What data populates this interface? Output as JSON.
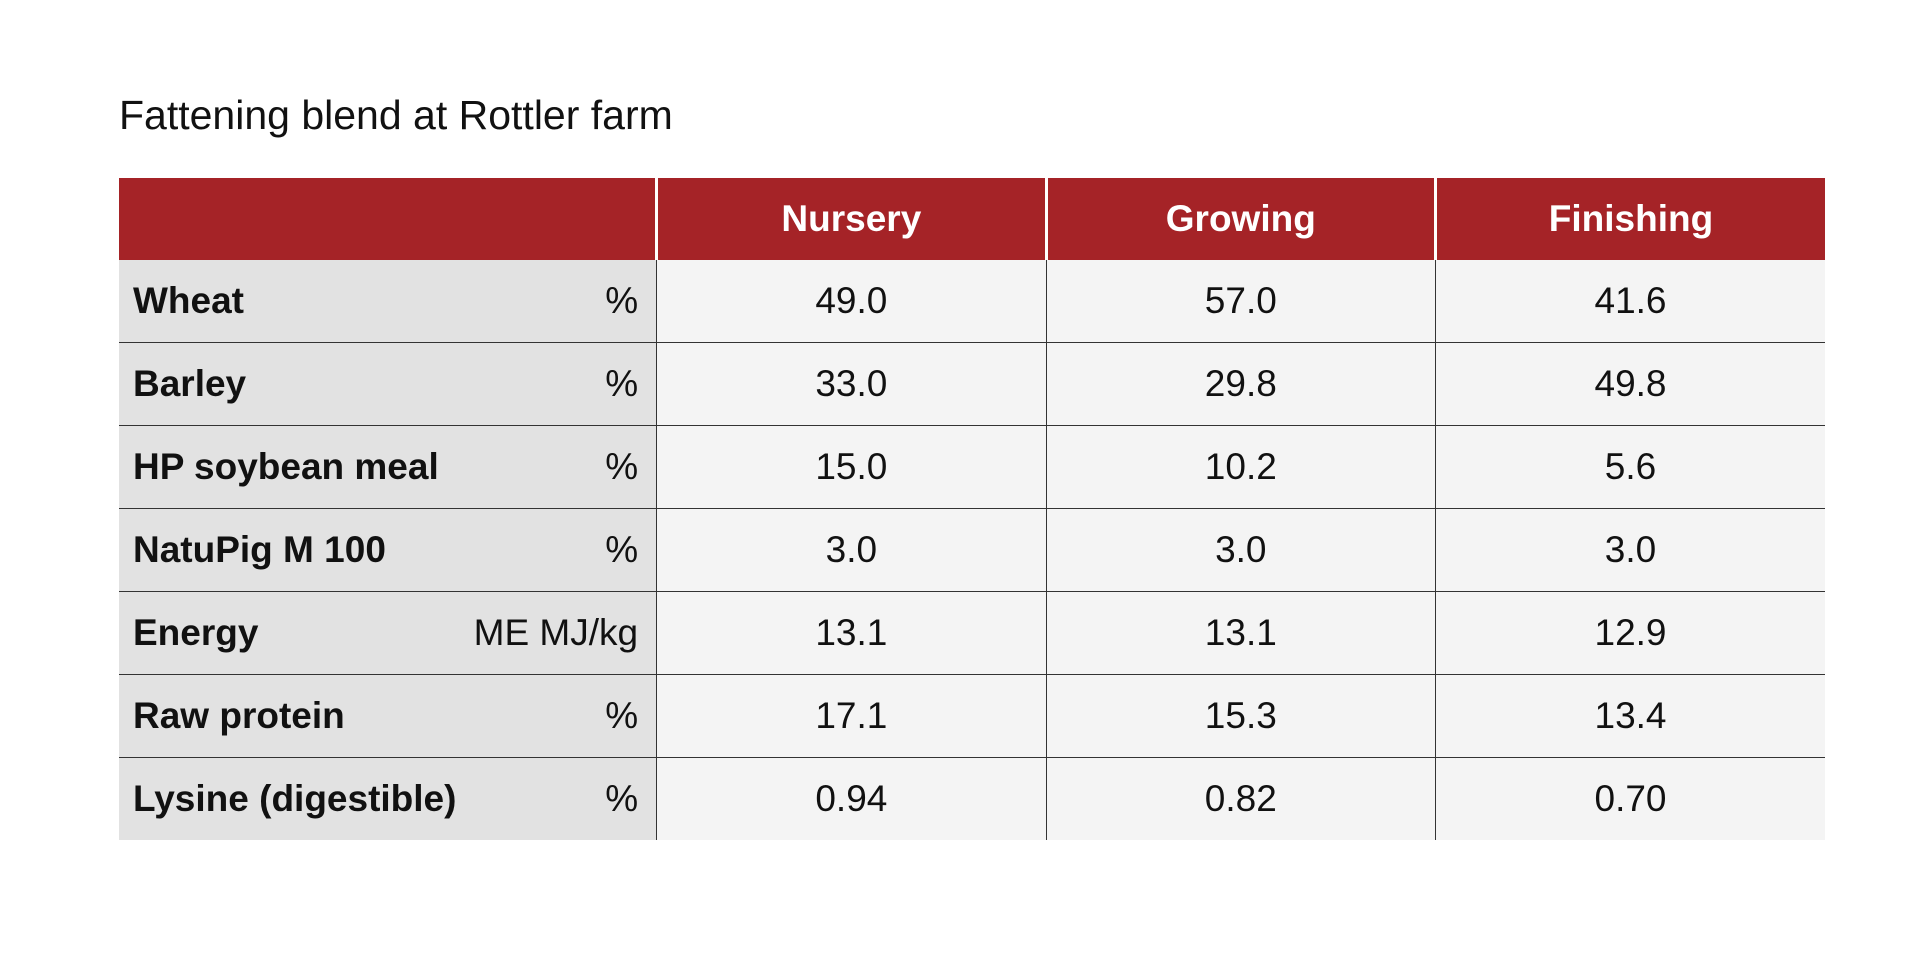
{
  "title": "Fattening blend at Rottler farm",
  "colors": {
    "header_bg": "#a52327",
    "header_text": "#ffffff",
    "label_bg": "#e2e2e2",
    "value_bg": "#f4f4f4"
  },
  "columns": [
    "Nursery",
    "Growing",
    "Finishing"
  ],
  "rows": [
    {
      "name": "Wheat",
      "unit": "%",
      "values": [
        "49.0",
        "57.0",
        "41.6"
      ]
    },
    {
      "name": "Barley",
      "unit": "%",
      "values": [
        "33.0",
        "29.8",
        "49.8"
      ]
    },
    {
      "name": "HP soybean meal",
      "unit": "%",
      "values": [
        "15.0",
        "10.2",
        "5.6"
      ]
    },
    {
      "name": "NatuPig M 100",
      "unit": "%",
      "values": [
        "3.0",
        "3.0",
        "3.0"
      ]
    },
    {
      "name": "Energy",
      "unit": "ME MJ/kg",
      "values": [
        "13.1",
        "13.1",
        "12.9"
      ]
    },
    {
      "name": "Raw protein",
      "unit": "%",
      "values": [
        "17.1",
        "15.3",
        "13.4"
      ]
    },
    {
      "name": "Lysine (digestible)",
      "unit": "%",
      "values": [
        "0.94",
        "0.82",
        "0.70"
      ]
    }
  ]
}
